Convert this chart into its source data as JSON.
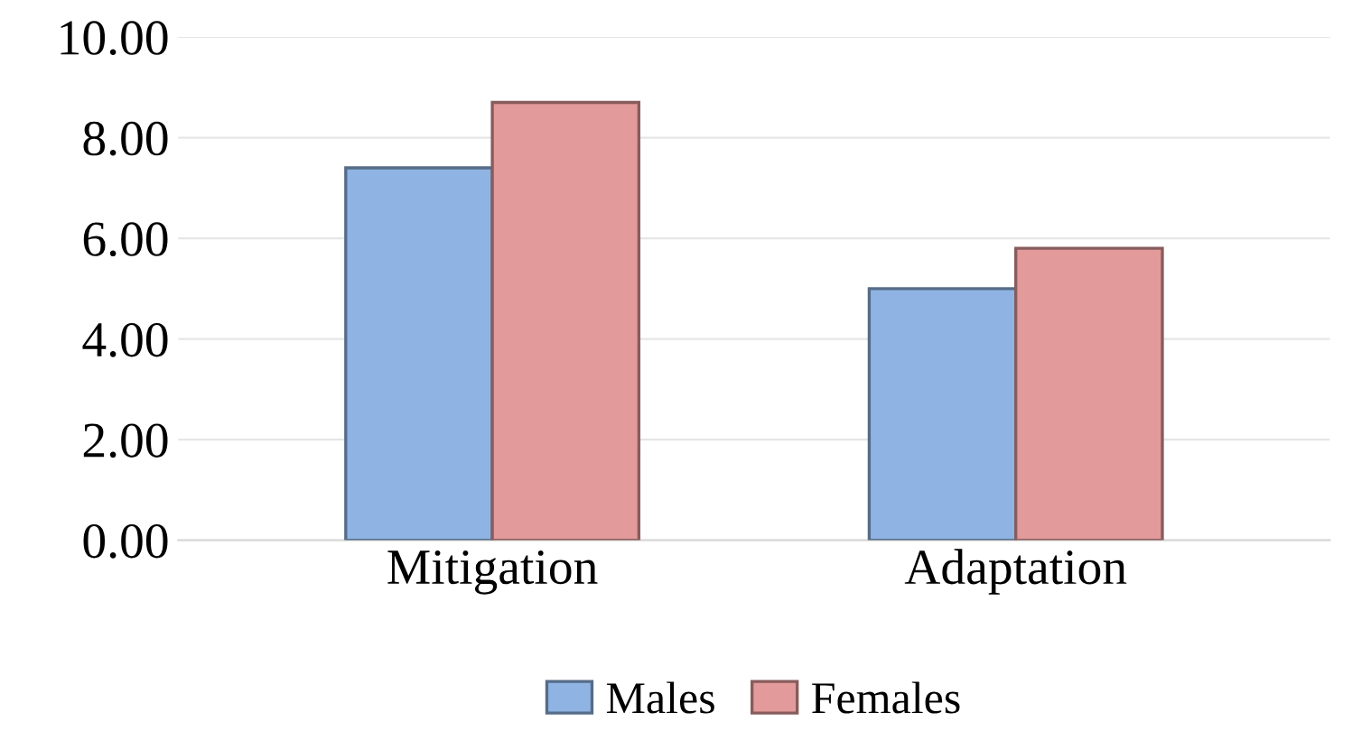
{
  "chart_data": {
    "type": "bar",
    "categories": [
      "Mitigation",
      "Adaptation"
    ],
    "series": [
      {
        "name": "Males",
        "color": "#8fb4e3",
        "values": [
          7.4,
          5.0
        ]
      },
      {
        "name": "Females",
        "color": "#e39a9a",
        "values": [
          8.7,
          5.8
        ]
      }
    ],
    "ylim": [
      0,
      10
    ],
    "yticks": [
      {
        "value": 0,
        "label": "0.00"
      },
      {
        "value": 2,
        "label": "2.00"
      },
      {
        "value": 4,
        "label": "4.00"
      },
      {
        "value": 6,
        "label": "6.00"
      },
      {
        "value": 8,
        "label": "8.00"
      },
      {
        "value": 10,
        "label": "10.00"
      }
    ],
    "grid": "y",
    "legend": "bottom"
  }
}
